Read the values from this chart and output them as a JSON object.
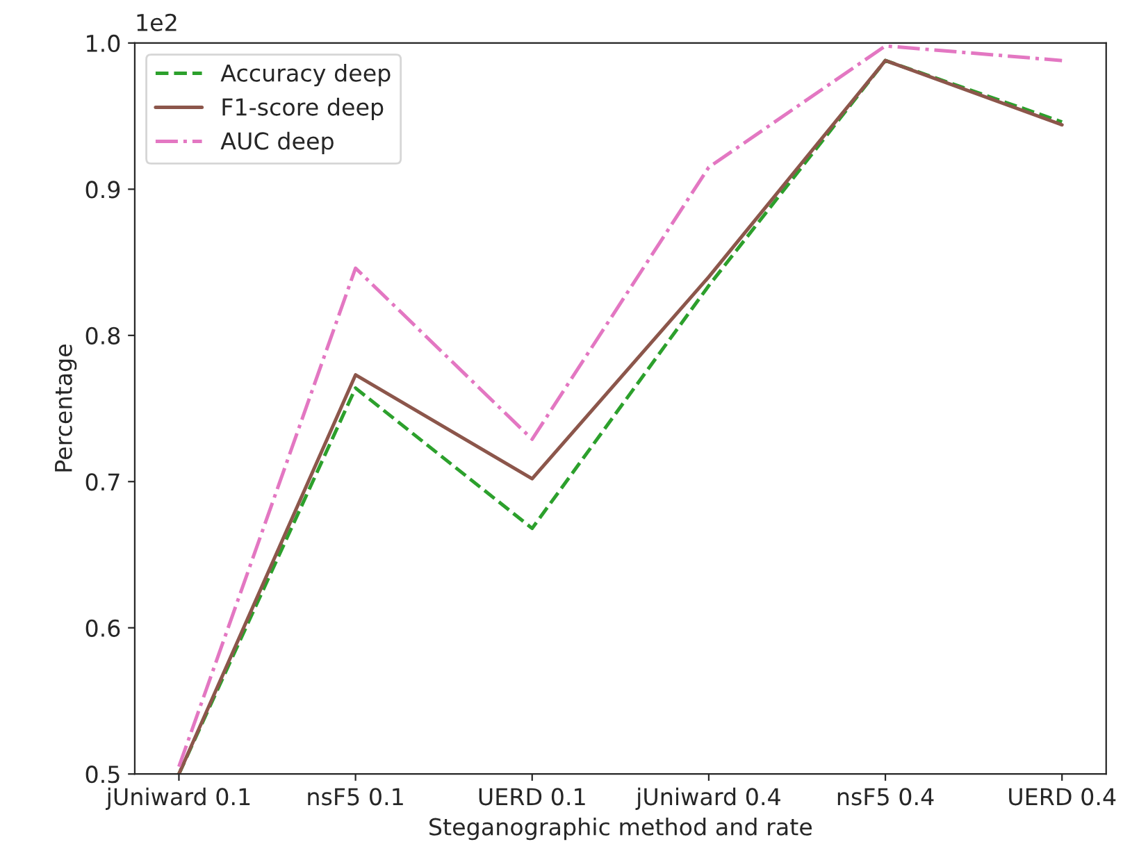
{
  "chart_data": {
    "type": "line",
    "xlabel": "Steganographic method and rate",
    "ylabel": "Percentage",
    "categories": [
      "jUniward 0.1",
      "nsF5 0.1",
      "UERD 0.1",
      "jUniward 0.4",
      "nsF5 0.4",
      "UERD 0.4"
    ],
    "series": [
      {
        "name": "Accuracy deep",
        "color": "#2ca02c",
        "line_style": "dashed",
        "values": [
          0.5,
          0.764,
          0.668,
          0.834,
          0.988,
          0.946
        ]
      },
      {
        "name": "F1-score deep",
        "color": "#8c564b",
        "line_style": "solid",
        "values": [
          0.5,
          0.773,
          0.702,
          0.84,
          0.988,
          0.944
        ]
      },
      {
        "name": "AUC deep",
        "color": "#e377c2",
        "line_style": "dashdot",
        "values": [
          0.505,
          0.846,
          0.729,
          0.915,
          0.998,
          0.988
        ]
      }
    ],
    "ylim": [
      0.5,
      1.0
    ],
    "yticks": [
      0.5,
      0.6,
      0.7,
      0.8,
      0.9,
      {
        "value": 1,
        "label": "1.0"
      }
    ],
    "annotations": [
      "1e2"
    ],
    "legend": "top left",
    "grid": false,
    "marker": "none"
  }
}
